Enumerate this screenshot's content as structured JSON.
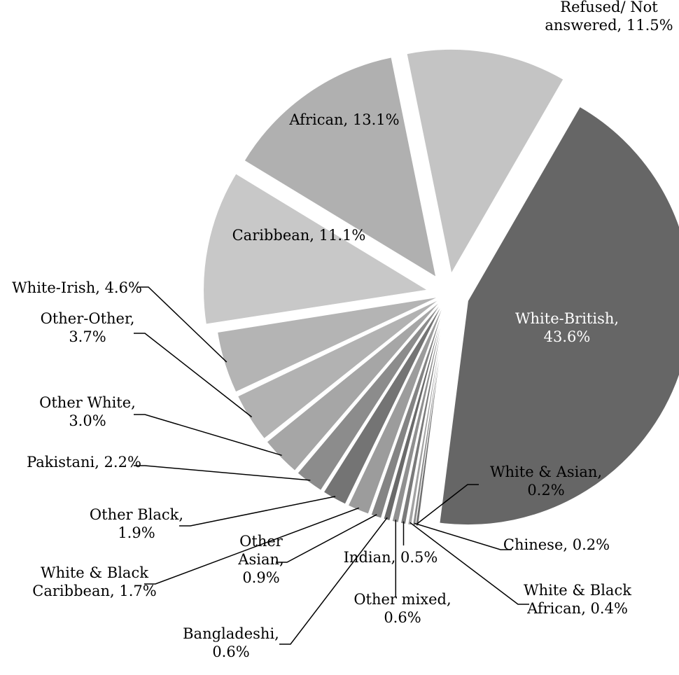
{
  "chart_data": {
    "type": "pie",
    "exploded": true,
    "slices": [
      {
        "label": "White-British",
        "value": 43.6,
        "label_text": [
          "White-British,",
          "43.6%"
        ],
        "color": "#666666"
      },
      {
        "label": "White & Asian",
        "value": 0.2,
        "label_text": [
          "White & Asian,",
          "0.2%"
        ],
        "color": "#6e6e6e"
      },
      {
        "label": "Chinese",
        "value": 0.2,
        "label_text": [
          "Chinese, 0.2%"
        ],
        "color": "#8a8a8a"
      },
      {
        "label": "White & Black African",
        "value": 0.4,
        "label_text": [
          "White & Black",
          "African, 0.4%"
        ],
        "color": "#a2a2a2"
      },
      {
        "label": "Indian",
        "value": 0.5,
        "label_text": [
          "Indian, 0.5%"
        ],
        "color": "#7a7a7a"
      },
      {
        "label": "Other mixed",
        "value": 0.6,
        "label_text": [
          "Other mixed,",
          "0.6%"
        ],
        "color": "#909090"
      },
      {
        "label": "Bangladeshi",
        "value": 0.6,
        "label_text": [
          "Bangladeshi,",
          "0.6%"
        ],
        "color": "#6a6a6a"
      },
      {
        "label": "Other Asian",
        "value": 0.9,
        "label_text": [
          "Other",
          "Asian,",
          "0.9%"
        ],
        "color": "#848484"
      },
      {
        "label": "White & Black Caribbean",
        "value": 1.7,
        "label_text": [
          "White & Black",
          "Caribbean, 1.7%"
        ],
        "color": "#9c9c9c"
      },
      {
        "label": "Other Black",
        "value": 1.9,
        "label_text": [
          "Other Black,",
          "1.9%"
        ],
        "color": "#747474"
      },
      {
        "label": "Pakistani",
        "value": 2.2,
        "label_text": [
          "Pakistani, 2.2%"
        ],
        "color": "#8c8c8c"
      },
      {
        "label": "Other White",
        "value": 3.0,
        "label_text": [
          "Other White,",
          "3.0%"
        ],
        "color": "#a6a6a6"
      },
      {
        "label": "Other-Other",
        "value": 3.7,
        "label_text": [
          "Other-Other,",
          "3.7%"
        ],
        "color": "#b2b2b2"
      },
      {
        "label": "White-Irish",
        "value": 4.6,
        "label_text": [
          "White-Irish, 4.6%"
        ],
        "color": "#b4b4b4"
      },
      {
        "label": "Caribbean",
        "value": 11.1,
        "label_text": [
          "Caribbean, 11.1%"
        ],
        "color": "#c8c8c8"
      },
      {
        "label": "African",
        "value": 13.1,
        "label_text": [
          "African, 13.1%"
        ],
        "color": "#b0b0b0"
      },
      {
        "label": "Refused/ Not answered",
        "value": 11.5,
        "label_text": [
          "Refused/ Not",
          "answered, 11.5%"
        ],
        "color": "#c4c4c4"
      }
    ]
  }
}
